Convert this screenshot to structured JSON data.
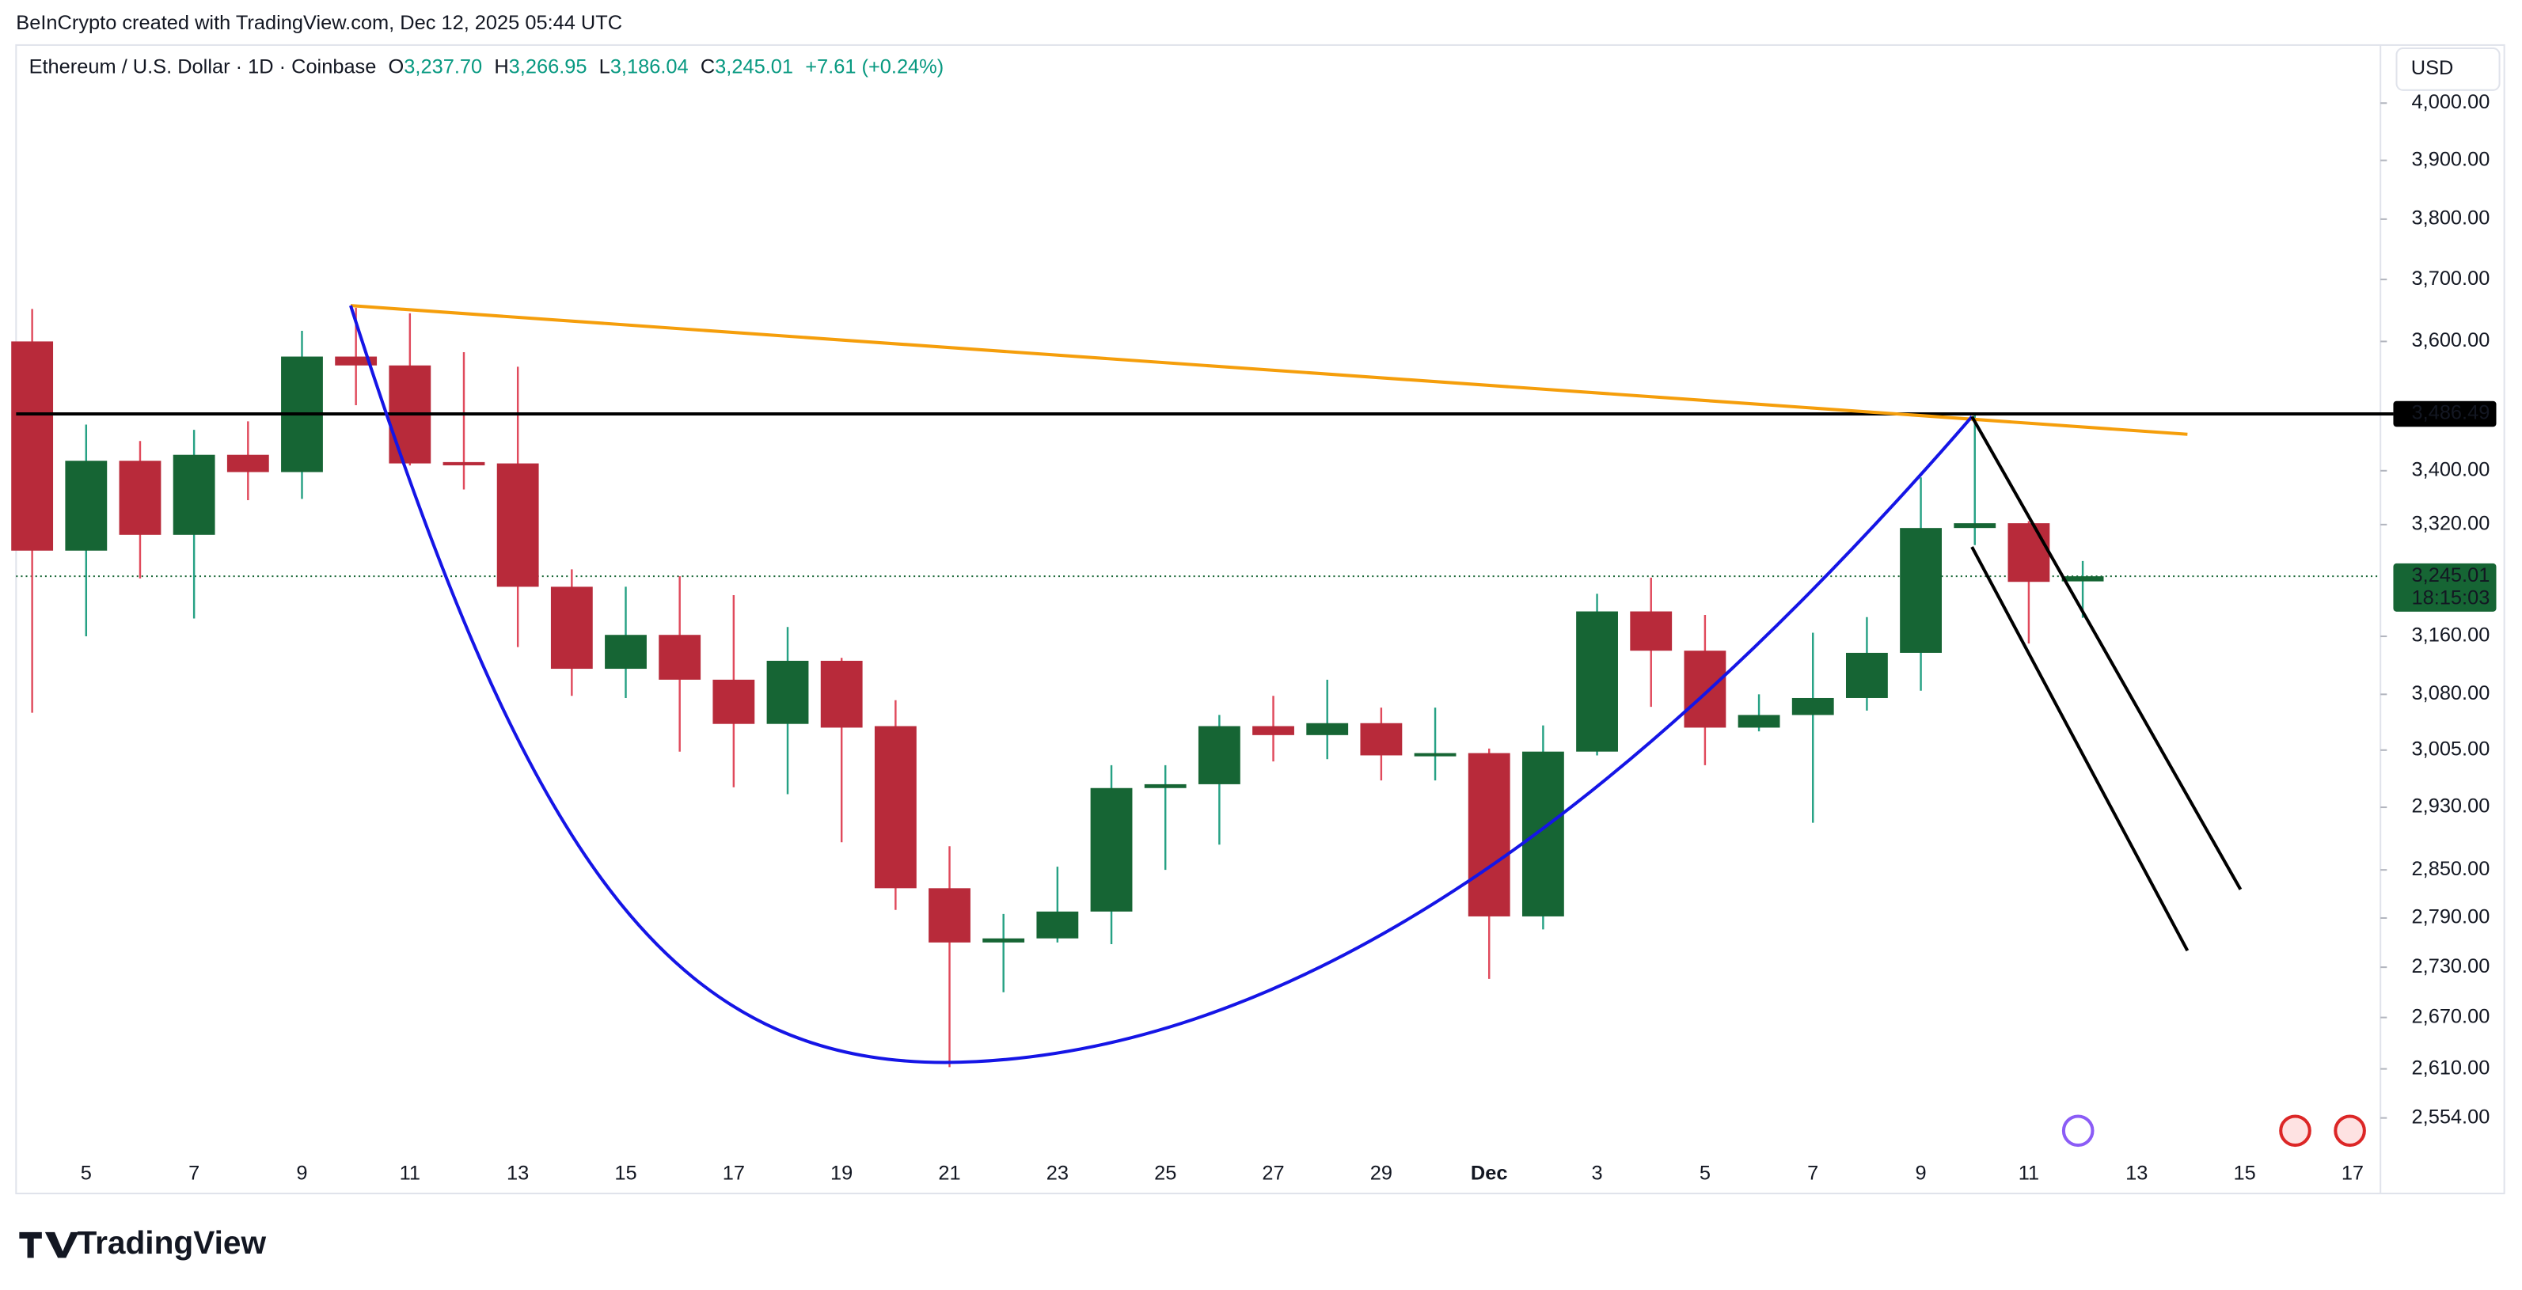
{
  "header": {
    "attribution": "BeInCrypto created with TradingView.com, Dec 12, 2025 05:44 UTC",
    "symbol": "Ethereum / U.S. Dollar · 1D · Coinbase",
    "ohlc": [
      {
        "key": "O",
        "value": "3,237.70"
      },
      {
        "key": "H",
        "value": "3,266.95"
      },
      {
        "key": "L",
        "value": "3,186.04"
      },
      {
        "key": "C",
        "value": "3,245.01"
      }
    ],
    "change": "+7.61 (+0.24%)"
  },
  "footer": {
    "logo": "TradingView"
  },
  "chart_data": {
    "type": "candlestick",
    "currency": "USD",
    "log_scale": true,
    "categories": [
      null,
      "5",
      null,
      "7",
      null,
      "9",
      null,
      "11",
      null,
      "13",
      null,
      "15",
      null,
      "17",
      null,
      "19",
      null,
      "21",
      null,
      "23",
      null,
      "25",
      null,
      "27",
      null,
      "29",
      null,
      "Dec",
      null,
      "3",
      null,
      "5",
      null,
      "7",
      null,
      "9",
      null,
      "11",
      null,
      "13",
      null,
      "15",
      null,
      "17"
    ],
    "open": [
      3600,
      3282,
      3415,
      3305,
      3424,
      3398,
      3576,
      3562,
      3413,
      3411,
      3230,
      3115,
      3162,
      3100,
      3040,
      3126,
      3037,
      2827,
      2760,
      2765,
      2798,
      2955,
      2960,
      3037,
      3025,
      3041,
      2999,
      3001,
      2792,
      3003,
      3195,
      3140,
      3035,
      3052,
      3075,
      3137,
      3315,
      3322,
      3237.7,
      null,
      null,
      null,
      null,
      null
    ],
    "high": [
      3652,
      3470,
      3445,
      3462,
      3475,
      3617,
      3654,
      3645,
      3583,
      3560,
      3255,
      3230,
      3245,
      3218,
      3173,
      3130,
      3072,
      2880,
      2795,
      2854,
      2985,
      2985,
      3052,
      3078,
      3100,
      3062,
      3062,
      3007,
      3038,
      3220,
      3243,
      3190,
      3080,
      3165,
      3187,
      3390,
      3486,
      3325,
      3266.95,
      null,
      null,
      null,
      null,
      null
    ],
    "low": [
      3055,
      3160,
      3242,
      3185,
      3356,
      3358,
      3500,
      3408,
      3372,
      3145,
      3078,
      3075,
      3003,
      2956,
      2947,
      2885,
      2800,
      2612,
      2700,
      2760,
      2758,
      2850,
      2882,
      2990,
      2993,
      2965,
      2965,
      2716,
      2776,
      2998,
      3063,
      2985,
      3030,
      2910,
      3058,
      3085,
      3290,
      3150,
      3186.04,
      null,
      null,
      null,
      null,
      null
    ],
    "close": [
      3282,
      3415,
      3305,
      3424,
      3398,
      3576,
      3562,
      3411,
      3409,
      3230,
      3115,
      3162,
      3100,
      3040,
      3126,
      3035,
      2827,
      2760,
      2765,
      2798,
      2955,
      2960,
      3037,
      3025,
      3041,
      2998,
      3001,
      2792,
      3003,
      3195,
      3140,
      3035,
      3052,
      3075,
      3137,
      3315,
      3322,
      3237,
      3245.01,
      null,
      null,
      null,
      null,
      null
    ],
    "up_color": "#166534",
    "down_color": "#b82a3a",
    "up_wick": "#26a184",
    "down_wick": "#e04a5c",
    "ylim": [
      2518,
      4104
    ],
    "yticks": [
      {
        "value": 4000,
        "label": "4,000.00"
      },
      {
        "value": 3900,
        "label": "3,900.00"
      },
      {
        "value": 3800,
        "label": "3,800.00"
      },
      {
        "value": 3700,
        "label": "3,700.00"
      },
      {
        "value": 3600,
        "label": "3,600.00"
      },
      {
        "value": 3400,
        "label": "3,400.00"
      },
      {
        "value": 3320,
        "label": "3,320.00"
      },
      {
        "value": 3160,
        "label": "3,160.00"
      },
      {
        "value": 3080,
        "label": "3,080.00"
      },
      {
        "value": 3005,
        "label": "3,005.00"
      },
      {
        "value": 2930,
        "label": "2,930.00"
      },
      {
        "value": 2850,
        "label": "2,850.00"
      },
      {
        "value": 2790,
        "label": "2,790.00"
      },
      {
        "value": 2730,
        "label": "2,730.00"
      },
      {
        "value": 2670,
        "label": "2,670.00"
      },
      {
        "value": 2610,
        "label": "2,610.00"
      },
      {
        "value": 2554,
        "label": "2,554.00"
      }
    ],
    "hline": {
      "value": 3486.49,
      "label": "3,486.49"
    },
    "last_price": {
      "value": 3245.01,
      "label": "3,245.01",
      "countdown": "18:15:03"
    }
  }
}
